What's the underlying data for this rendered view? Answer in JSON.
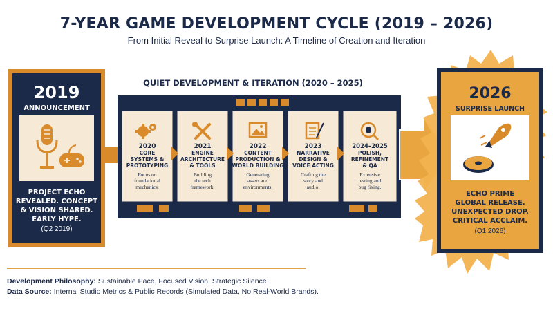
{
  "header": {
    "title": "7-YEAR GAME DEVELOPMENT CYCLE (2019 – 2026)",
    "subtitle": "From Initial Reveal to Surprise Launch: A Timeline of Creation and Iteration"
  },
  "announcement": {
    "year": "2019",
    "label": "ANNOUNCEMENT",
    "desc_lines": [
      "PROJECT ECHO",
      "REVEALED. CONCEPT",
      "& VISION SHARED.",
      "EARLY HYPE."
    ],
    "date": "(Q2 2019)",
    "icon": "microphone-gamepad-icon"
  },
  "development": {
    "banner": "QUIET DEVELOPMENT & ITERATION (2020 – 2025)",
    "stages": [
      {
        "year": "2020",
        "title_lines": [
          "CORE",
          "SYSTEMS &",
          "PROTOTYPING"
        ],
        "desc_lines": [
          "Focus on",
          "foundational",
          "mechanics."
        ],
        "icon": "gears-icon"
      },
      {
        "year": "2021",
        "title_lines": [
          "ENGINE",
          "ARCHITECTURE",
          "& TOOLS"
        ],
        "desc_lines": [
          "Building",
          "the tech",
          "framework."
        ],
        "icon": "tools-icon"
      },
      {
        "year": "2022",
        "title_lines": [
          "CONTENT",
          "PRODUCTION &",
          "WORLD BUILDING"
        ],
        "desc_lines": [
          "Generating",
          "assets and",
          "environments."
        ],
        "icon": "image-icon"
      },
      {
        "year": "2023",
        "title_lines": [
          "NARRATIVE",
          "DESIGN &",
          "VOICE ACTING"
        ],
        "desc_lines": [
          "Crafting the",
          "story and",
          "audio."
        ],
        "icon": "script-quill-icon"
      },
      {
        "year": "2024–2025",
        "title_lines": [
          "POLISH,",
          "REFINEMENT",
          "& QA"
        ],
        "desc_lines": [
          "Extensive",
          "testing and",
          "bug fixing."
        ],
        "icon": "bug-magnifier-icon"
      }
    ]
  },
  "launch": {
    "year": "2026",
    "label": "SURPRISE LAUNCH",
    "desc_lines": [
      "ECHO PRIME",
      "GLOBAL RELEASE.",
      "UNEXPECTED DROP.",
      "CRITICAL ACCLAIM."
    ],
    "date": "(Q1 2026)",
    "icon": "rocket-disc-icon"
  },
  "footer": {
    "philosophy_label": "Development Philosophy:",
    "philosophy_text": "Sustainable Pace, Focused Vision, Strategic Silence.",
    "source_label": "Data Source:",
    "source_text": "Internal Studio Metrics & Public Records (Simulated Data, No Real-World Brands)."
  },
  "colors": {
    "navy": "#1c2a4a",
    "orange": "#d98a2b",
    "cream": "#f6ead6",
    "gold": "#e9a640"
  }
}
